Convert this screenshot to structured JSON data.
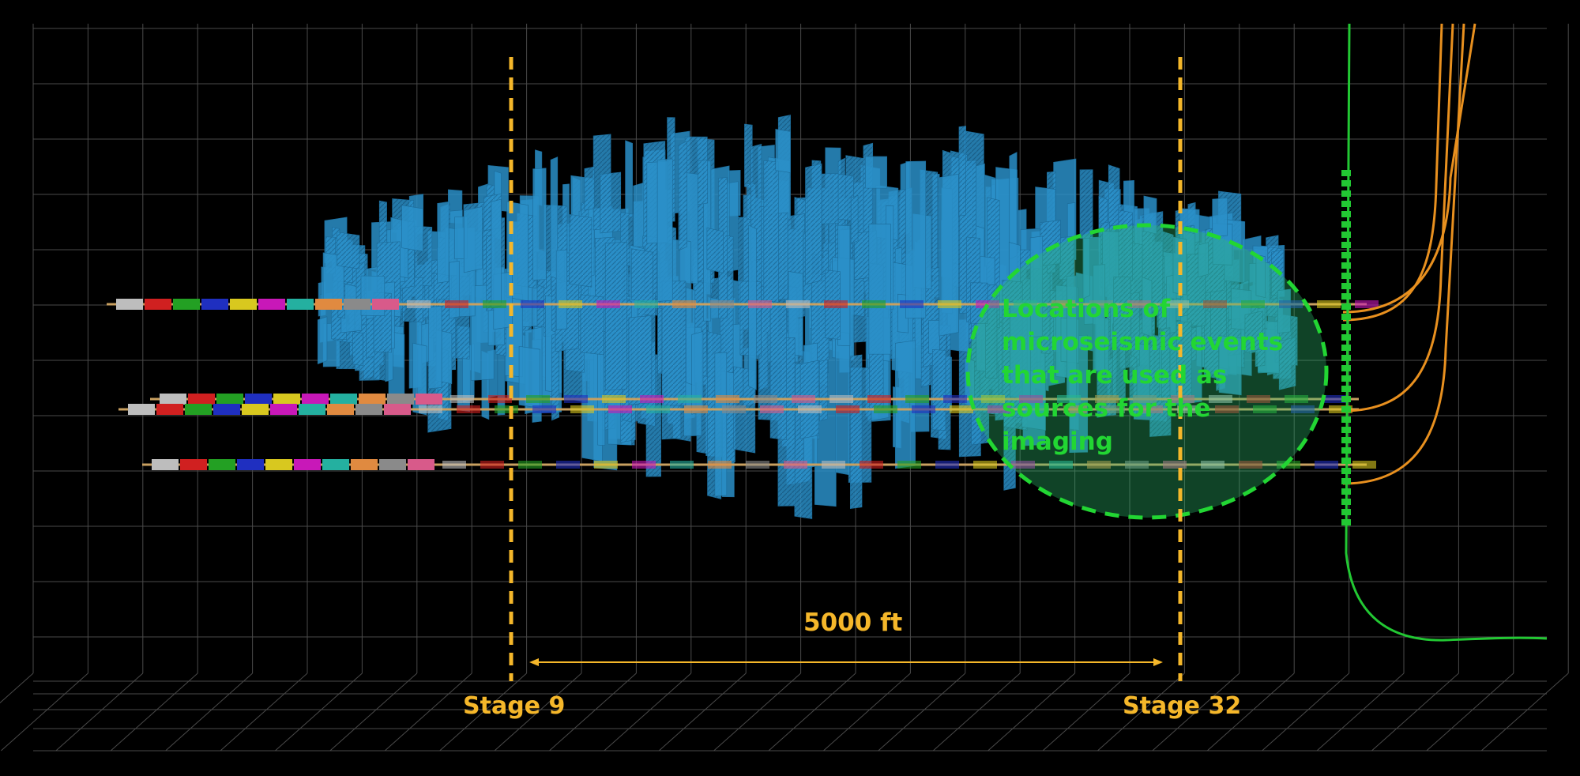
{
  "labels": {
    "stage_left": "Stage 9",
    "stage_right": "Stage 32",
    "distance": "5000 ft",
    "callout": "Locations of microseismic events that are used as sources for the imaging"
  },
  "colors": {
    "background": "#000000",
    "grid": "#4a4a4a",
    "fractures": "#2a8fc8",
    "stage_markers": "#f5b72a",
    "callout": "#22d633",
    "monitor_wells": "#e8901f",
    "observation_well": "#22c833"
  }
}
